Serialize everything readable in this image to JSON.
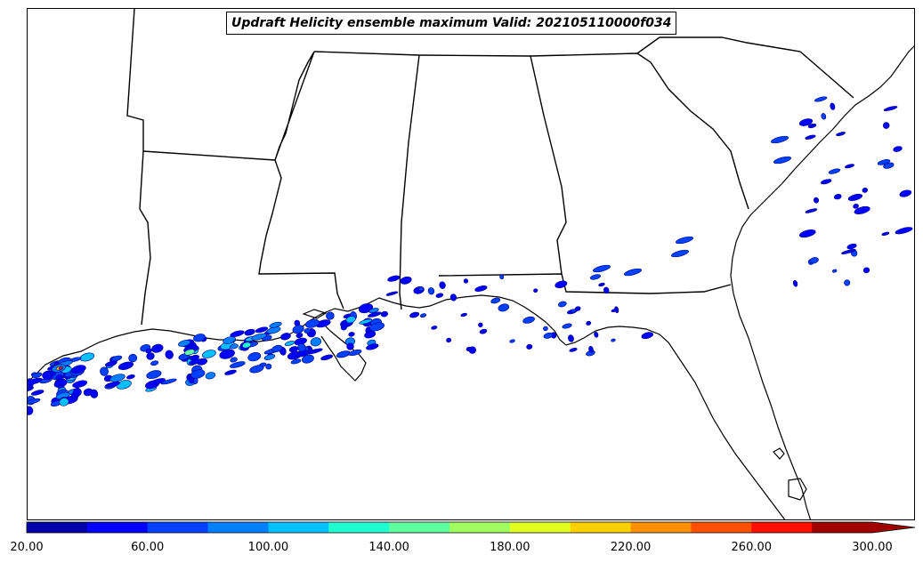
{
  "title": "Updraft Helicity ensemble maximum Valid: 202105110000f034",
  "colorbar": {
    "min": 20,
    "max": 300,
    "extend": "max",
    "tick_labels": [
      "20.00",
      "60.00",
      "100.00",
      "140.00",
      "180.00",
      "220.00",
      "260.00",
      "300.00"
    ],
    "colors": [
      "#0000aa",
      "#0000ff",
      "#0040ff",
      "#0080ff",
      "#00c0ff",
      "#20ffd0",
      "#60ffa0",
      "#a0ff60",
      "#e0ff20",
      "#ffd000",
      "#ff9000",
      "#ff5000",
      "#ff1000",
      "#a00000"
    ],
    "extend_color": "#a00000"
  },
  "colors": {
    "outline": "#000000",
    "ocean": "#ffffff",
    "land": "#ffffff"
  }
}
